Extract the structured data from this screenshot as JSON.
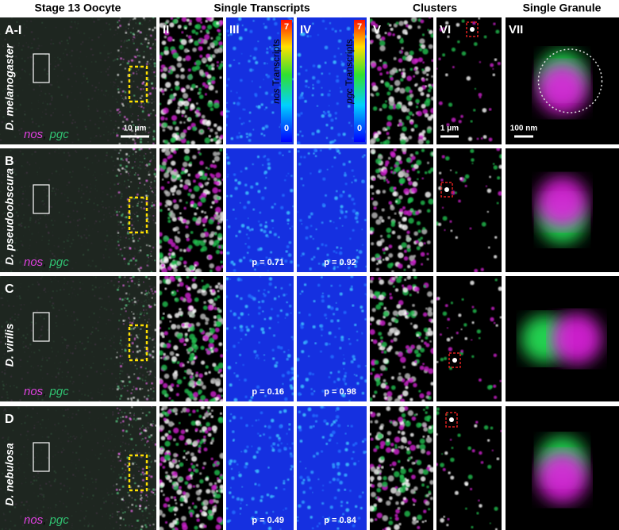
{
  "column_headers": [
    "Stage 13 Oocyte",
    "Single Transcripts",
    "Clusters",
    "Single Granule"
  ],
  "column_numerals": [
    "II",
    "III",
    "IV",
    "V",
    "VI",
    "VII"
  ],
  "rows": [
    {
      "letter": "A-I",
      "species": "D. melanogaster",
      "probes": [
        "nos",
        "pgc"
      ]
    },
    {
      "letter": "B",
      "species": "D. pseudoobscura",
      "probes": [
        "nos",
        "pgc"
      ],
      "p_values": [
        "p = 0.71",
        "p = 0.92"
      ]
    },
    {
      "letter": "C",
      "species": "D. virilis",
      "probes": [
        "nos",
        "pgc"
      ],
      "p_values": [
        "p = 0.16",
        "p = 0.98"
      ]
    },
    {
      "letter": "D",
      "species": "D. nebulosa",
      "probes": [
        "nos",
        "pgc"
      ],
      "p_values": [
        "p = 0.49",
        "p = 0.84"
      ]
    }
  ],
  "colorbars": [
    {
      "probe": "nos",
      "label": "Transcripts",
      "max": "7",
      "min": "0"
    },
    {
      "probe": "pgc",
      "label": "Transcripts",
      "max": "7",
      "min": "0"
    }
  ],
  "scale_bars": [
    "10 μm",
    "1 μm",
    "100 nm"
  ]
}
